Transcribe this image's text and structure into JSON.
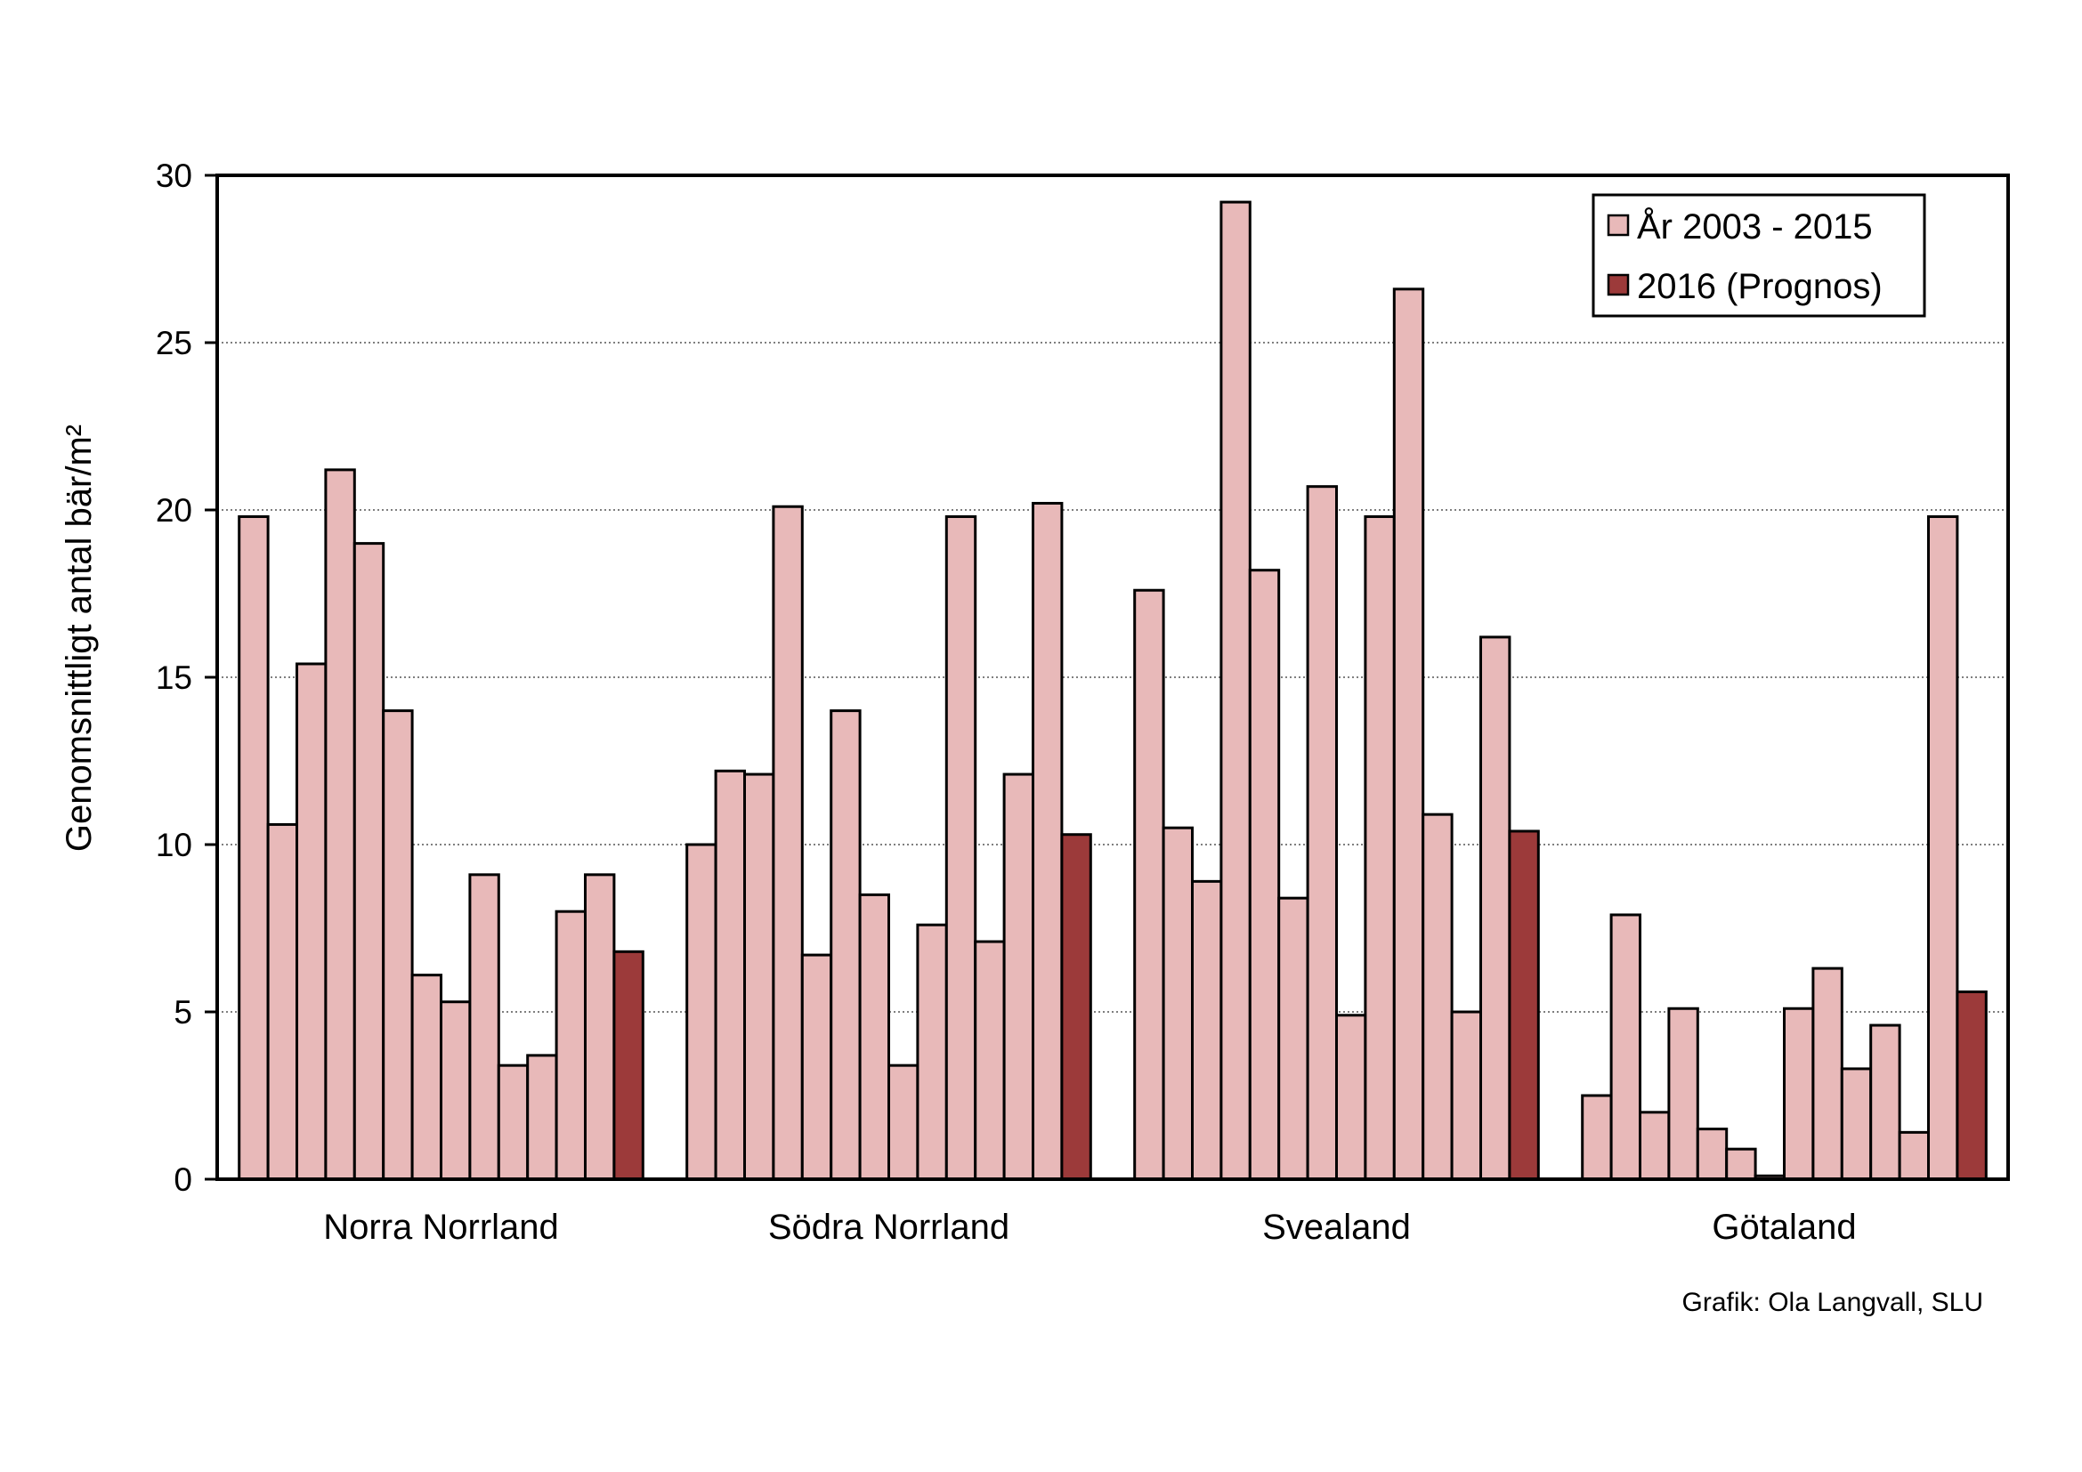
{
  "chart_data": {
    "type": "bar",
    "ylabel": "Genomsnittligt antal bär/m²",
    "ylim": [
      0,
      30
    ],
    "yticks": [
      0,
      5,
      10,
      15,
      20,
      25,
      30
    ],
    "grid": "horizontal dotted",
    "legend_position": "top-right",
    "categories": [
      "Norra Norrland",
      "Södra Norrland",
      "Svealand",
      "Götaland"
    ],
    "series": [
      {
        "name": "År 2003 - 2015",
        "color": "#e8b9b9",
        "values": [
          [
            19.8,
            10.6,
            15.4,
            21.2,
            19.0,
            14.0,
            6.1,
            5.3,
            9.1,
            3.4,
            3.7,
            8.0,
            9.1
          ],
          [
            10.0,
            12.2,
            12.1,
            20.1,
            6.7,
            14.0,
            8.5,
            3.4,
            7.6,
            19.8,
            7.1,
            12.1,
            20.2
          ],
          [
            17.6,
            10.5,
            8.9,
            29.2,
            18.2,
            8.4,
            20.7,
            4.9,
            19.8,
            26.6,
            10.9,
            5.0,
            16.2
          ],
          [
            2.5,
            7.9,
            2.0,
            5.1,
            1.5,
            0.9,
            0.1,
            5.1,
            6.3,
            3.3,
            4.6,
            1.4,
            19.8
          ]
        ]
      },
      {
        "name": "2016 (Prognos)",
        "color": "#9c3a3a",
        "values": [
          6.8,
          10.3,
          10.4,
          5.6
        ]
      }
    ],
    "credit": "Grafik: Ola Langvall, SLU"
  }
}
